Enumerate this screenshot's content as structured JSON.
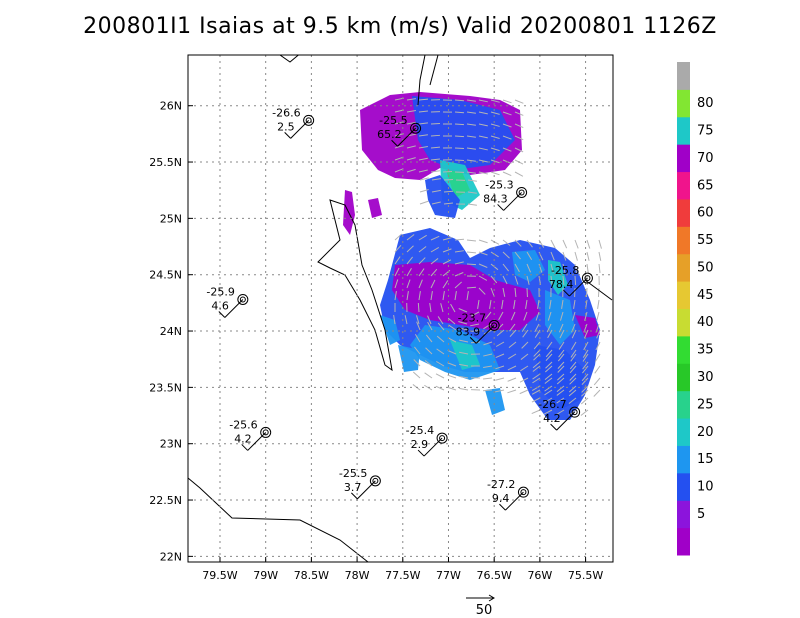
{
  "chart_data": {
    "type": "heatmap",
    "title": "200801I1 Isaias at 9.5 km (m/s) Valid 20200801 1126Z",
    "x_ticks": [
      "79.5W",
      "79W",
      "78.5W",
      "78W",
      "77.5W",
      "77W",
      "76.5W",
      "76W",
      "75.5W"
    ],
    "x_tick_values": [
      -79.5,
      -79,
      -78.5,
      -78,
      -77.5,
      -77,
      -76.5,
      -76,
      -75.5
    ],
    "y_ticks": [
      "22N",
      "22.5N",
      "23N",
      "23.5N",
      "24N",
      "24.5N",
      "25N",
      "25.5N",
      "26N"
    ],
    "y_tick_values": [
      22,
      22.5,
      23,
      23.5,
      24,
      24.5,
      25,
      25.5,
      26
    ],
    "xlim": [
      -79.85,
      -75.2
    ],
    "ylim": [
      21.95,
      26.45
    ],
    "grid": true,
    "colorbar": {
      "labels": [
        "5",
        "10",
        "15",
        "20",
        "25",
        "30",
        "35",
        "40",
        "45",
        "50",
        "55",
        "60",
        "65",
        "70",
        "75",
        "80"
      ],
      "colors": [
        "#a000c8",
        "#8c14dc",
        "#2450f0",
        "#1e96f0",
        "#1ec8c8",
        "#28d28c",
        "#28c828",
        "#32dc32",
        "#c8dc32",
        "#e6c832",
        "#e6a028",
        "#f07828",
        "#f03c3c",
        "#f0148c",
        "#a000c8",
        "#1ec8c8",
        "#82e632",
        "#aaaaaa"
      ]
    },
    "observations": [
      {
        "lon": -78.53,
        "lat": 25.87,
        "temp": "-26.6",
        "wind": "2.5"
      },
      {
        "lon": -77.36,
        "lat": 25.8,
        "temp": "-25.5",
        "wind": "65.2"
      },
      {
        "lon": -76.2,
        "lat": 25.23,
        "temp": "-25.3",
        "wind": "84.3"
      },
      {
        "lon": -75.48,
        "lat": 24.47,
        "temp": "-25.8",
        "wind": "78.4"
      },
      {
        "lon": -79.25,
        "lat": 24.28,
        "temp": "-25.9",
        "wind": "4.6"
      },
      {
        "lon": -76.5,
        "lat": 24.05,
        "temp": "-23.7",
        "wind": "83.9"
      },
      {
        "lon": -75.62,
        "lat": 23.28,
        "temp": "-26.7",
        "wind": "4.2"
      },
      {
        "lon": -79.0,
        "lat": 23.1,
        "temp": "-25.6",
        "wind": "4.2"
      },
      {
        "lon": -77.07,
        "lat": 23.05,
        "temp": "-25.4",
        "wind": "2.9"
      },
      {
        "lon": -77.8,
        "lat": 22.67,
        "temp": "-25.5",
        "wind": "3.7"
      },
      {
        "lon": -76.18,
        "lat": 22.57,
        "temp": "-27.2",
        "wind": "9.4"
      }
    ],
    "reference_vector": {
      "label": "50"
    }
  }
}
